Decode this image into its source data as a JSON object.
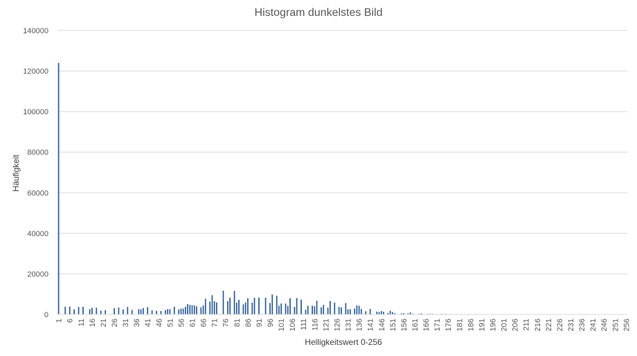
{
  "chart_data": {
    "type": "bar",
    "title": "Histogram dunkelstes Bild",
    "xlabel": "Helligkeitswert 0-256",
    "ylabel": "Häufigkeit",
    "ylim": [
      0,
      140000
    ],
    "y_ticks": [
      "0",
      "20000",
      "40000",
      "60000",
      "80000",
      "100000",
      "120000",
      "140000"
    ],
    "grid": true,
    "legend": "none",
    "x_start": 1,
    "x_end": 256,
    "x_tick_step": 5,
    "bar_color": "#2e5f9e",
    "values": [
      124000,
      0,
      0,
      3800,
      0,
      3900,
      0,
      2500,
      0,
      3700,
      0,
      3800,
      0,
      0,
      2600,
      3300,
      0,
      3300,
      0,
      1900,
      0,
      2100,
      0,
      0,
      0,
      3100,
      0,
      3400,
      0,
      2400,
      0,
      3700,
      0,
      2200,
      0,
      0,
      2600,
      2500,
      3200,
      0,
      3600,
      0,
      2000,
      0,
      1800,
      0,
      1700,
      0,
      2100,
      2600,
      2600,
      0,
      3800,
      0,
      2500,
      2900,
      2900,
      3800,
      5100,
      4700,
      4500,
      4500,
      4000,
      0,
      3500,
      4400,
      7700,
      0,
      6300,
      9500,
      6500,
      5900,
      0,
      0,
      11700,
      0,
      6600,
      8200,
      0,
      11600,
      5800,
      7200,
      0,
      5000,
      5900,
      8000,
      0,
      5800,
      8200,
      0,
      8300,
      0,
      0,
      8200,
      0,
      5600,
      9800,
      0,
      9200,
      4300,
      5400,
      0,
      5400,
      4200,
      8000,
      0,
      3700,
      8100,
      0,
      7300,
      0,
      2300,
      4300,
      0,
      4300,
      4000,
      6700,
      0,
      3500,
      4700,
      0,
      3300,
      6600,
      0,
      5800,
      0,
      3700,
      3500,
      0,
      5600,
      2500,
      2600,
      0,
      2900,
      4500,
      4300,
      2700,
      0,
      1600,
      0,
      2700,
      0,
      0,
      1400,
      1200,
      1700,
      1300,
      0,
      700,
      1800,
      1200,
      600,
      0,
      0,
      500,
      600,
      0,
      500,
      1000,
      400,
      0,
      0,
      300,
      500,
      0,
      200,
      300,
      300,
      300,
      0,
      200,
      0,
      300,
      200,
      300,
      0,
      200,
      0,
      200,
      200,
      0,
      200,
      0,
      0,
      200,
      0,
      100,
      0,
      100,
      0,
      0,
      100,
      0,
      100,
      0,
      0,
      100,
      0,
      100,
      0,
      0,
      100,
      0,
      0,
      0,
      0,
      0,
      0,
      0,
      0,
      0,
      0,
      0,
      0,
      0,
      0,
      0,
      0,
      0,
      0,
      0,
      0,
      0,
      0,
      0,
      0,
      0,
      0,
      0,
      0,
      0,
      0,
      0,
      0,
      0,
      0,
      0,
      0,
      0,
      0,
      0,
      0,
      0,
      0,
      0,
      0,
      0,
      0,
      0,
      0,
      0,
      0,
      0,
      0,
      0,
      0,
      0,
      0,
      0,
      0,
      0,
      0,
      0,
      0,
      0,
      0,
      0,
      0,
      0,
      0,
      0,
      0,
      0,
      0,
      0,
      0
    ]
  }
}
